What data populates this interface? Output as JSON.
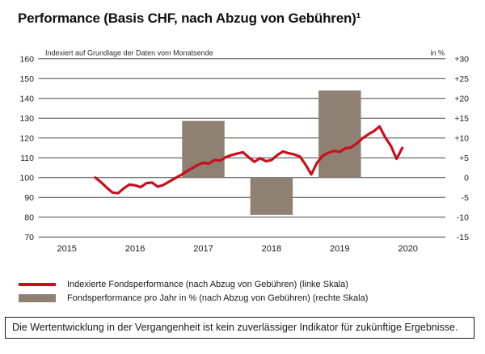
{
  "title": "Performance (Basis CHF, nach Abzug von Gebühren)¹",
  "colors": {
    "line": "#c8101c",
    "bar": "#8e8174",
    "grid": "#474747",
    "text": "#1a1a1a"
  },
  "chart_data": {
    "type": "line+bar",
    "title": "Performance (Basis CHF, nach Abzug von Gebühren)",
    "x_ticks": [
      2015,
      2016,
      2017,
      2018,
      2019,
      2020
    ],
    "left_axis": {
      "title": "Indexiert auf Grundlage der Daten vom Monatsende",
      "min": 70,
      "max": 160,
      "ticks": [
        160,
        150,
        140,
        130,
        120,
        110,
        100,
        90,
        80,
        70
      ]
    },
    "right_axis": {
      "title": "in %",
      "min": -15,
      "max": 30,
      "ticks": [
        30,
        25,
        20,
        15,
        10,
        5,
        0,
        -5,
        -10,
        -15
      ],
      "tick_labels": [
        "+30",
        "+25",
        "+20",
        "+15",
        "+10",
        "+5",
        "0",
        "-5",
        "-10",
        "-15"
      ]
    },
    "series": [
      {
        "name": "Indexierte Fondsperformance (nach Abzug von Gebühren)",
        "type": "line",
        "axis": "left",
        "points": [
          [
            2015.417,
            100.0
          ],
          [
            2015.5,
            97.7
          ],
          [
            2015.583,
            95.0
          ],
          [
            2015.667,
            92.5
          ],
          [
            2015.75,
            92.1
          ],
          [
            2015.833,
            94.5
          ],
          [
            2015.917,
            96.5
          ],
          [
            2016.0,
            96.1
          ],
          [
            2016.083,
            95.2
          ],
          [
            2016.167,
            97.2
          ],
          [
            2016.25,
            97.5
          ],
          [
            2016.333,
            95.4
          ],
          [
            2016.417,
            96.3
          ],
          [
            2016.5,
            98.0
          ],
          [
            2016.583,
            99.6
          ],
          [
            2016.667,
            101.2
          ],
          [
            2016.75,
            103.0
          ],
          [
            2016.833,
            104.7
          ],
          [
            2016.917,
            106.3
          ],
          [
            2017.0,
            107.5
          ],
          [
            2017.083,
            107.1
          ],
          [
            2017.167,
            108.9
          ],
          [
            2017.25,
            108.6
          ],
          [
            2017.333,
            110.4
          ],
          [
            2017.417,
            111.4
          ],
          [
            2017.5,
            112.2
          ],
          [
            2017.583,
            112.8
          ],
          [
            2017.667,
            110.2
          ],
          [
            2017.75,
            108.0
          ],
          [
            2017.833,
            109.8
          ],
          [
            2017.917,
            108.3
          ],
          [
            2018.0,
            108.9
          ],
          [
            2018.083,
            111.3
          ],
          [
            2018.167,
            113.2
          ],
          [
            2018.25,
            112.3
          ],
          [
            2018.333,
            111.7
          ],
          [
            2018.417,
            110.6
          ],
          [
            2018.5,
            106.5
          ],
          [
            2018.583,
            101.6
          ],
          [
            2018.667,
            107.5
          ],
          [
            2018.75,
            111.0
          ],
          [
            2018.833,
            112.5
          ],
          [
            2018.917,
            113.5
          ],
          [
            2019.0,
            113.0
          ],
          [
            2019.083,
            114.8
          ],
          [
            2019.167,
            115.3
          ],
          [
            2019.25,
            117.3
          ],
          [
            2019.333,
            119.8
          ],
          [
            2019.417,
            121.8
          ],
          [
            2019.5,
            123.5
          ],
          [
            2019.583,
            125.8
          ],
          [
            2019.667,
            120.3
          ],
          [
            2019.75,
            116.0
          ],
          [
            2019.833,
            109.5
          ],
          [
            2019.917,
            115.0
          ]
        ]
      },
      {
        "name": "Fondsperformance pro Jahr in % (nach Abzug von Gebühren)",
        "type": "bar",
        "axis": "right",
        "points": [
          [
            2017,
            14.3
          ],
          [
            2018,
            -9.4
          ],
          [
            2019,
            22.0
          ]
        ]
      }
    ]
  },
  "legend": [
    {
      "swatch": "line",
      "label": "Indexierte Fondsperformance (nach Abzug von Gebühren) (linke Skala)"
    },
    {
      "swatch": "bar",
      "label": "Fondsperformance pro Jahr in % (nach Abzug von Gebühren) (rechte Skala)"
    }
  ],
  "disclaimer": "Die Wertentwicklung in der Vergangenheit ist kein zuverlässiger Indikator für zukünftige Ergebnisse."
}
